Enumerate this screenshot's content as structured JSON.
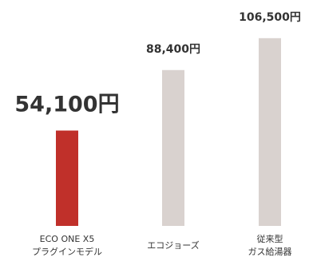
{
  "chart_data": {
    "type": "bar",
    "categories": [
      [
        "ECO ONE X5",
        "プラグインモデル"
      ],
      [
        "エコジョーズ"
      ],
      [
        "従来型",
        "ガス給湯器"
      ]
    ],
    "values": [
      54100,
      88400,
      106500
    ],
    "value_labels": [
      "54,100円",
      "88,400円",
      "106,500円"
    ],
    "colors": [
      "#c0302a",
      "#d9d2cf",
      "#d9d2cf"
    ],
    "highlight_index": 0,
    "ylim": [
      0,
      120000
    ],
    "grid": false,
    "legend": "none"
  }
}
